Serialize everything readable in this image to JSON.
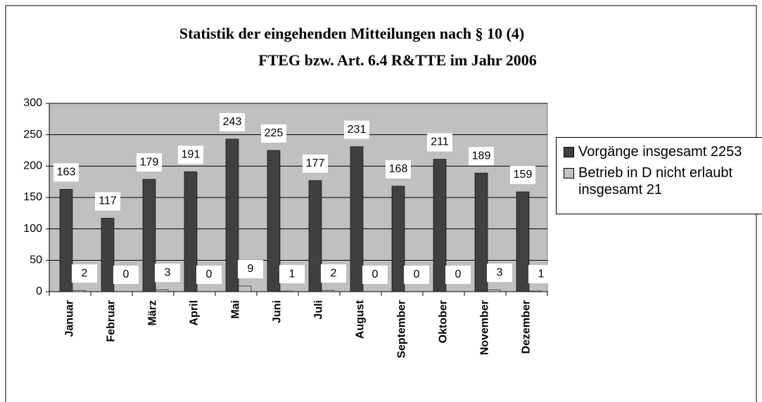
{
  "chart_data": {
    "type": "bar",
    "title": [
      "Statistik der eingehenden Mitteilungen nach § 10 (4)",
      "FTEG bzw. Art. 6.4 R&TTE im Jahr 2006"
    ],
    "categories": [
      "Januar",
      "Februar",
      "März",
      "April",
      "Mai",
      "Juni",
      "Juli",
      "August",
      "September",
      "Oktober",
      "November",
      "Dezember"
    ],
    "series": [
      {
        "name": "Vorgänge insgesamt 2253",
        "color": "#404040",
        "values": [
          163,
          117,
          179,
          191,
          243,
          225,
          177,
          231,
          168,
          211,
          189,
          159
        ]
      },
      {
        "name": "Betrieb in D nicht erlaubt insgesamt 21",
        "color": "#c0c0c0",
        "values": [
          2,
          0,
          3,
          0,
          9,
          1,
          2,
          0,
          0,
          0,
          3,
          1
        ]
      }
    ],
    "ylim": [
      0,
      300
    ],
    "yticks": [
      0,
      50,
      100,
      150,
      200,
      250,
      300
    ],
    "grid": true,
    "legend": "right"
  }
}
